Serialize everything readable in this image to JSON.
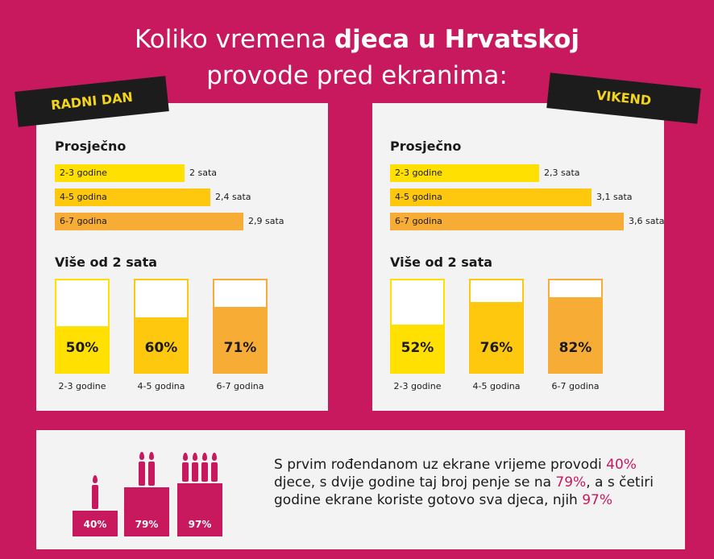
{
  "title": {
    "line1_pre": "Koliko vremena ",
    "line1_bold": "djeca u Hrvatskoj",
    "line2": "provode pred ekranima:"
  },
  "colors": {
    "pink": "#c8195f",
    "yellow1": "#ffe000",
    "yellow2": "#fdc80d",
    "orange": "#f7ad35",
    "dark": "#1c1c1c"
  },
  "panels": {
    "work": {
      "tag": "RADNI DAN",
      "avg_title": "Prosječno",
      "over_title": "Više od 2 sata",
      "rows": [
        {
          "label": "2-3 godine",
          "value_label": "2 sata"
        },
        {
          "label": "4-5 godina",
          "value_label": "2,4 sata"
        },
        {
          "label": "6-7 godina",
          "value_label": "2,9 sata"
        }
      ],
      "jars": [
        {
          "label": "2-3 godine",
          "pct_label": "50%"
        },
        {
          "label": "4-5 godina",
          "pct_label": "60%"
        },
        {
          "label": "6-7 godina",
          "pct_label": "71%"
        }
      ]
    },
    "weekend": {
      "tag": "VIKEND",
      "avg_title": "Prosječno",
      "over_title": "Više od 2 sata",
      "rows": [
        {
          "label": "2-3 godine",
          "value_label": "2,3 sata"
        },
        {
          "label": "4-5 godina",
          "value_label": "3,1 sata"
        },
        {
          "label": "6-7 godina",
          "value_label": "3,6 sata"
        }
      ],
      "jars": [
        {
          "label": "2-3 godine",
          "pct_label": "52%"
        },
        {
          "label": "4-5 godina",
          "pct_label": "76%"
        },
        {
          "label": "6-7 godina",
          "pct_label": "82%"
        }
      ]
    }
  },
  "chart_data": [
    {
      "type": "bar",
      "title": "RADNI DAN — Prosječno",
      "categories": [
        "2-3 godine",
        "4-5 godina",
        "6-7 godina"
      ],
      "values": [
        2,
        2.4,
        2.9
      ],
      "unit": "sata",
      "xlim": [
        0,
        3.6
      ]
    },
    {
      "type": "bar",
      "title": "RADNI DAN — Više od 2 sata",
      "categories": [
        "2-3 godine",
        "4-5 godina",
        "6-7 godina"
      ],
      "values": [
        50,
        60,
        71
      ],
      "unit": "%",
      "ylim": [
        0,
        100
      ]
    },
    {
      "type": "bar",
      "title": "VIKEND — Prosječno",
      "categories": [
        "2-3 godine",
        "4-5 godina",
        "6-7 godina"
      ],
      "values": [
        2.3,
        3.1,
        3.6
      ],
      "unit": "sata",
      "xlim": [
        0,
        3.6
      ]
    },
    {
      "type": "bar",
      "title": "VIKEND — Više od 2 sata",
      "categories": [
        "2-3 godine",
        "4-5 godina",
        "6-7 godina"
      ],
      "values": [
        52,
        76,
        82
      ],
      "unit": "%",
      "ylim": [
        0,
        100
      ]
    },
    {
      "type": "bar",
      "title": "Rođendani",
      "categories": [
        "1 godina",
        "2 godine",
        "4 godine"
      ],
      "values": [
        40,
        79,
        97
      ],
      "unit": "%"
    }
  ],
  "cakes": [
    {
      "pct_label": "40%",
      "candles": 1
    },
    {
      "pct_label": "79%",
      "candles": 2
    },
    {
      "pct_label": "97%",
      "candles": 4
    }
  ],
  "bottom_text": {
    "part1": "S prvim rođendanom uz ekrane vrijeme provodi ",
    "hl1": "40%",
    "part2": " djece, s dvije godine taj broj penje se na ",
    "hl2": "79%",
    "part3": ", a s četiri godine ekrane koriste gotovo sva djeca, njih ",
    "hl3": "97%"
  }
}
